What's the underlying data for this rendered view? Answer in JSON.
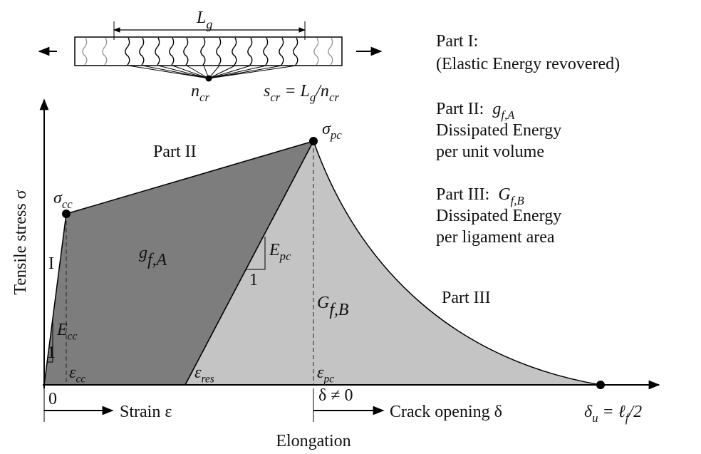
{
  "specimen": {
    "gauge_length": [
      "L",
      "g"
    ],
    "crack_count": [
      "n",
      "cr"
    ],
    "crack_spacing": [
      "s",
      "cr",
      " = L",
      "g",
      "/n",
      "cr"
    ]
  },
  "legend": [
    {
      "title": "Part I:",
      "lines": [
        "(Elastic Energy revovered)"
      ]
    },
    {
      "title": "Part II:",
      "symbol": [
        "g",
        "f,A"
      ],
      "lines": [
        "Dissipated Energy",
        "per unit volume"
      ]
    },
    {
      "title": "Part III:",
      "symbol": [
        "G",
        "f,B"
      ],
      "lines": [
        "Dissipated Energy",
        "per ligament area"
      ]
    }
  ],
  "diagram": {
    "y_axis_label": "Tensile stress σ",
    "regions": {
      "part_one": "I",
      "part_two": "Part II",
      "part_three": "Part III",
      "g_fA": [
        "g",
        "f,A"
      ],
      "G_fB": [
        "G",
        "f,B"
      ]
    },
    "points": {
      "sigma_cc": [
        "σ",
        "cc"
      ],
      "sigma_pc": [
        "σ",
        "pc"
      ],
      "delta_u": [
        "δ",
        "u",
        " = ℓ",
        "f",
        "/2"
      ]
    },
    "strains": {
      "eps_cc": [
        "ε",
        "cc"
      ],
      "eps_res": [
        "ε",
        "res"
      ],
      "eps_pc": [
        "ε",
        "pc"
      ]
    },
    "slopes": {
      "E_pc": [
        "E",
        "pc"
      ],
      "E_pc_unit": "1",
      "E_cc": [
        "E",
        "cc"
      ],
      "E_cc_unit": "1"
    },
    "axis": {
      "zero": "0",
      "strain": "Strain ε",
      "delta_nonzero": "δ ≠ 0",
      "crack_opening": "Crack opening δ",
      "elongation": "Elongation"
    }
  }
}
